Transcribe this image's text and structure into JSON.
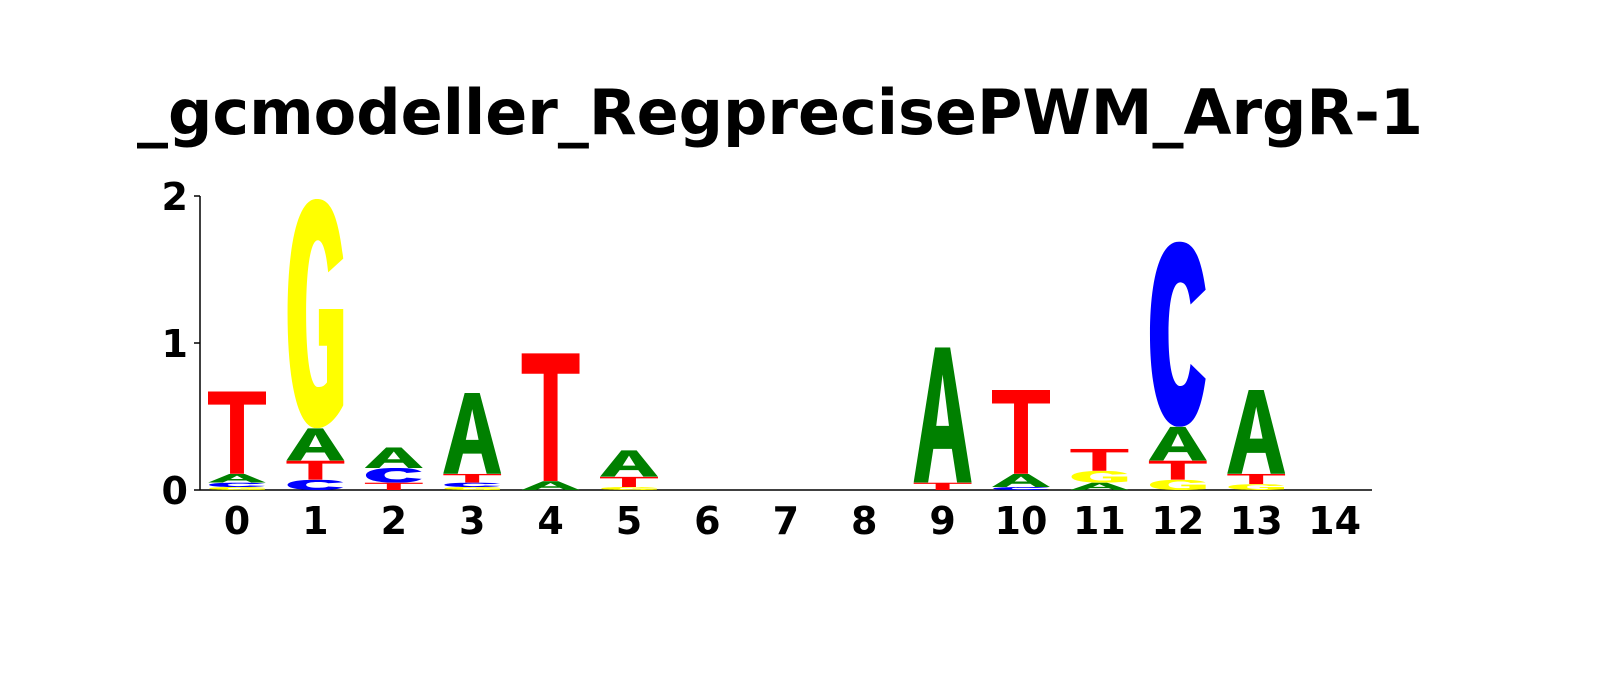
{
  "title": "_gcmodeller_RegprecisePWM_ArgR-1",
  "chart_data": {
    "type": "sequence_logo",
    "title": "_gcmodeller_RegprecisePWM_ArgR-1",
    "xlabel": "",
    "ylabel": "",
    "ylim": [
      0,
      2
    ],
    "y_ticks": [
      "0",
      "1",
      "2"
    ],
    "x_ticks": [
      "0",
      "1",
      "2",
      "3",
      "4",
      "5",
      "6",
      "7",
      "8",
      "9",
      "10",
      "11",
      "12",
      "13",
      "14"
    ],
    "colors": {
      "A": "#008000",
      "C": "#0000ff",
      "G": "#ffff00",
      "T": "#ff0000"
    },
    "positions": [
      {
        "pos": 0,
        "stack": [
          {
            "base": "G",
            "height": 0.02
          },
          {
            "base": "C",
            "height": 0.03
          },
          {
            "base": "A",
            "height": 0.06
          },
          {
            "base": "T",
            "height": 0.56
          }
        ]
      },
      {
        "pos": 1,
        "stack": [
          {
            "base": "C",
            "height": 0.07
          },
          {
            "base": "T",
            "height": 0.13
          },
          {
            "base": "A",
            "height": 0.22
          },
          {
            "base": "G",
            "height": 1.56
          }
        ]
      },
      {
        "pos": 2,
        "stack": [
          {
            "base": "T",
            "height": 0.05
          },
          {
            "base": "C",
            "height": 0.1
          },
          {
            "base": "A",
            "height": 0.14
          }
        ]
      },
      {
        "pos": 3,
        "stack": [
          {
            "base": "G",
            "height": 0.02
          },
          {
            "base": "C",
            "height": 0.03
          },
          {
            "base": "T",
            "height": 0.06
          },
          {
            "base": "A",
            "height": 0.55
          }
        ]
      },
      {
        "pos": 4,
        "stack": [
          {
            "base": "A",
            "height": 0.06
          },
          {
            "base": "T",
            "height": 0.87
          }
        ]
      },
      {
        "pos": 5,
        "stack": [
          {
            "base": "G",
            "height": 0.02
          },
          {
            "base": "T",
            "height": 0.07
          },
          {
            "base": "A",
            "height": 0.18
          }
        ]
      },
      {
        "pos": 6,
        "stack": []
      },
      {
        "pos": 7,
        "stack": []
      },
      {
        "pos": 8,
        "stack": []
      },
      {
        "pos": 9,
        "stack": [
          {
            "base": "T",
            "height": 0.05
          },
          {
            "base": "A",
            "height": 0.92
          }
        ]
      },
      {
        "pos": 10,
        "stack": [
          {
            "base": "C",
            "height": 0.02
          },
          {
            "base": "A",
            "height": 0.09
          },
          {
            "base": "T",
            "height": 0.57
          }
        ]
      },
      {
        "pos": 11,
        "stack": [
          {
            "base": "A",
            "height": 0.05
          },
          {
            "base": "G",
            "height": 0.08
          },
          {
            "base": "T",
            "height": 0.15
          }
        ]
      },
      {
        "pos": 12,
        "stack": [
          {
            "base": "G",
            "height": 0.07
          },
          {
            "base": "T",
            "height": 0.13
          },
          {
            "base": "A",
            "height": 0.23
          },
          {
            "base": "C",
            "height": 1.26
          }
        ]
      },
      {
        "pos": 13,
        "stack": [
          {
            "base": "G",
            "height": 0.04
          },
          {
            "base": "T",
            "height": 0.07
          },
          {
            "base": "A",
            "height": 0.57
          }
        ]
      },
      {
        "pos": 14,
        "stack": []
      }
    ]
  }
}
